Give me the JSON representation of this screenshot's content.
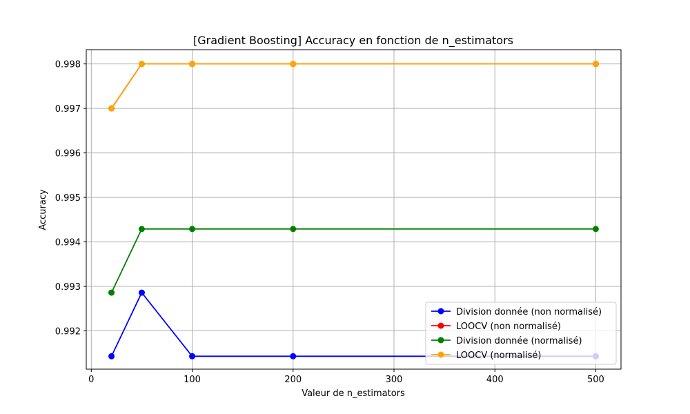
{
  "chart_data": {
    "type": "line",
    "title": "[Gradient Boosting] Accuracy en fonction de n_estimators",
    "xlabel": "Valeur de n_estimators",
    "ylabel": "Accuracy",
    "x": [
      20,
      50,
      100,
      200,
      500
    ],
    "xlim": [
      -5,
      525
    ],
    "ylim": [
      0.99114,
      0.99832
    ],
    "xticks": [
      0,
      100,
      200,
      300,
      400,
      500
    ],
    "xtick_labels": [
      "0",
      "100",
      "200",
      "300",
      "400",
      "500"
    ],
    "yticks": [
      0.992,
      0.993,
      0.994,
      0.995,
      0.996,
      0.997,
      0.998
    ],
    "ytick_labels": [
      "0.992",
      "0.993",
      "0.994",
      "0.995",
      "0.996",
      "0.997",
      "0.998"
    ],
    "grid": true,
    "legend_position": "lower-right",
    "series": [
      {
        "name": "Division donnée (non normalisé)",
        "color": "#0000ff",
        "values": [
          0.99143,
          0.99286,
          0.99143,
          0.99143,
          0.99143
        ]
      },
      {
        "name": "LOOCV (non normalisé)",
        "color": "#ff0000",
        "values": [
          0.997,
          0.998,
          0.998,
          0.998,
          0.998
        ]
      },
      {
        "name": "Division donnée (normalisé)",
        "color": "#008000",
        "values": [
          0.99286,
          0.99429,
          0.99429,
          0.99429,
          0.99429
        ]
      },
      {
        "name": "LOOCV (normalisé)",
        "color": "#ffa500",
        "values": [
          0.997,
          0.998,
          0.998,
          0.998,
          0.998
        ]
      }
    ]
  }
}
